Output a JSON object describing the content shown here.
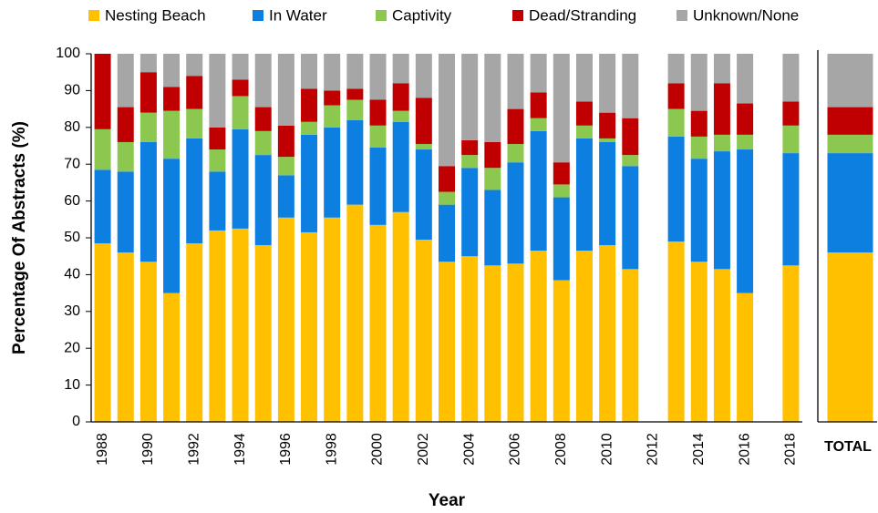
{
  "chart_data": [
    {
      "type": "bar",
      "stacked": true,
      "y_label": "Percentage Of Abstracts (%)",
      "x_label": "Year",
      "categories": [
        "1988",
        null,
        "1990",
        null,
        "1992",
        null,
        "1994",
        null,
        "1996",
        null,
        "1998",
        null,
        "2000",
        null,
        "2002",
        null,
        "2004",
        null,
        "2006",
        null,
        "2008",
        null,
        "2010",
        null,
        "2012",
        null,
        "2014",
        null,
        "2016",
        null,
        "2018"
      ],
      "series": [
        {
          "name": "Nesting Beach",
          "color": "#ffc000",
          "values": [
            48.5,
            46,
            43.5,
            35,
            48.5,
            52,
            52.5,
            48,
            55.5,
            51.5,
            55.5,
            59,
            53.5,
            57,
            49.5,
            43.5,
            45,
            42.5,
            43,
            46.5,
            38.5,
            46.5,
            48,
            41.5,
            null,
            49,
            43.5,
            41.5,
            35,
            null,
            42.5
          ]
        },
        {
          "name": "In Water",
          "color": "#0c7fe0",
          "values": [
            20,
            22,
            32.5,
            36.5,
            28.5,
            16,
            27,
            24.5,
            11.5,
            26.5,
            24.5,
            23,
            21,
            24.5,
            24.5,
            15.5,
            24,
            20.5,
            27.5,
            32.5,
            22.5,
            30.5,
            28,
            28,
            null,
            28.5,
            28,
            32,
            39,
            null,
            30.5
          ]
        },
        {
          "name": "Captivity",
          "color": "#8cc850",
          "values": [
            11,
            8,
            8,
            13,
            8,
            6,
            9,
            6.5,
            5,
            3.5,
            6,
            5.5,
            6,
            3,
            1.5,
            3.5,
            3.5,
            6,
            5,
            3.5,
            3.5,
            3.5,
            1,
            3,
            null,
            7.5,
            6,
            4.5,
            4,
            null,
            7.5
          ]
        },
        {
          "name": "Dead/Stranding",
          "color": "#c00000",
          "values": [
            20.5,
            9.5,
            11,
            6.5,
            9,
            6,
            4.5,
            6.5,
            8.5,
            9,
            4,
            3,
            7,
            7.5,
            12.5,
            7,
            4,
            7,
            9.5,
            7,
            6,
            6.5,
            7,
            10,
            null,
            7,
            7,
            14,
            8.5,
            null,
            6.5
          ]
        },
        {
          "name": "Unknown/None",
          "color": "#a6a6a6",
          "values": [
            0,
            14.5,
            5,
            9,
            6,
            20,
            7,
            14.5,
            19.5,
            9.5,
            10,
            9.5,
            12.5,
            8,
            12,
            30.5,
            23.5,
            24,
            15,
            10.5,
            29.5,
            13,
            16,
            17.5,
            null,
            8,
            15.5,
            8,
            13.5,
            null,
            13
          ]
        }
      ],
      "ylim": [
        0,
        100
      ],
      "yticks": [
        0,
        10,
        20,
        30,
        40,
        50,
        60,
        70,
        80,
        90,
        100
      ],
      "legend": "top"
    },
    {
      "type": "bar",
      "stacked": true,
      "categories": [
        "TOTAL"
      ],
      "ylim": [
        0,
        100
      ],
      "series": [
        {
          "color": "#ffc000",
          "values": [
            46
          ]
        },
        {
          "color": "#0c7fe0",
          "values": [
            27
          ]
        },
        {
          "color": "#8cc850",
          "values": [
            5
          ]
        },
        {
          "color": "#c00000",
          "values": [
            7.5
          ]
        },
        {
          "color": "#a6a6a6",
          "values": [
            14.5
          ]
        }
      ]
    }
  ]
}
